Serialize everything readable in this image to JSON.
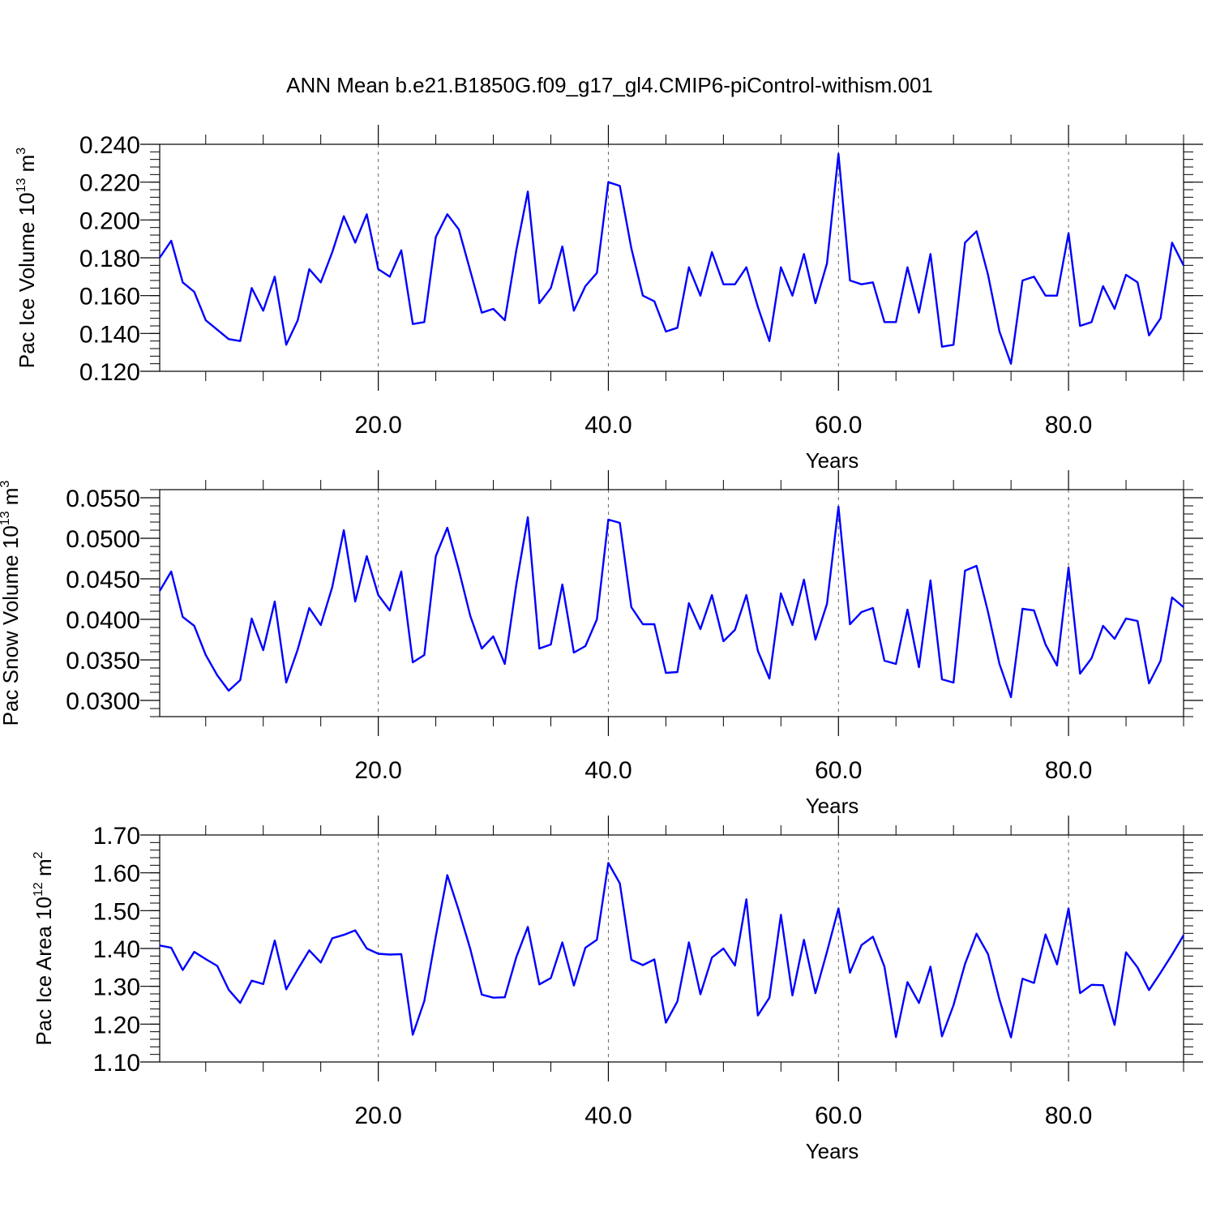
{
  "title": "ANN Mean b.e21.B1850G.f09_g17_gl4.CMIP6-piControl-withism.001",
  "colors": {
    "series": "#0000ff",
    "axes": "#000000",
    "grid": "#666666"
  },
  "chart_data": [
    {
      "type": "line",
      "ylabel": {
        "main": "Pac Ice Volume 10",
        "sup": "13",
        "unit": " m",
        "unit_sup": "3"
      },
      "xlabel": "Years",
      "xlim": [
        1,
        90
      ],
      "ylim": [
        0.12,
        0.24
      ],
      "yticks": [
        0.12,
        0.14,
        0.16,
        0.18,
        0.2,
        0.22,
        0.24
      ],
      "ytick_labels": [
        "0.120",
        "0.140",
        "0.160",
        "0.180",
        "0.200",
        "0.220",
        "0.240"
      ],
      "xticks": [
        20,
        40,
        60,
        80
      ],
      "xtick_labels": [
        "20.0",
        "40.0",
        "60.0",
        "80.0"
      ],
      "grid": "vertical dashed at major x ticks",
      "x": [
        1,
        2,
        3,
        4,
        5,
        6,
        7,
        8,
        9,
        10,
        11,
        12,
        13,
        14,
        15,
        16,
        17,
        18,
        19,
        20,
        21,
        22,
        23,
        24,
        25,
        26,
        27,
        28,
        29,
        30,
        31,
        32,
        33,
        34,
        35,
        36,
        37,
        38,
        39,
        40,
        41,
        42,
        43,
        44,
        45,
        46,
        47,
        48,
        49,
        50,
        51,
        52,
        53,
        54,
        55,
        56,
        57,
        58,
        59,
        60,
        61,
        62,
        63,
        64,
        65,
        66,
        67,
        68,
        69,
        70,
        71,
        72,
        73,
        74,
        75,
        76,
        77,
        78,
        79,
        80,
        81,
        82,
        83,
        84,
        85,
        86,
        87,
        88,
        89,
        90
      ],
      "values": [
        0.18,
        0.189,
        0.167,
        0.162,
        0.147,
        0.142,
        0.137,
        0.136,
        0.164,
        0.152,
        0.17,
        0.134,
        0.147,
        0.174,
        0.167,
        0.183,
        0.202,
        0.188,
        0.203,
        0.174,
        0.17,
        0.184,
        0.145,
        0.146,
        0.191,
        0.203,
        0.195,
        0.173,
        0.151,
        0.153,
        0.147,
        0.184,
        0.215,
        0.156,
        0.164,
        0.186,
        0.152,
        0.165,
        0.172,
        0.22,
        0.218,
        0.185,
        0.16,
        0.157,
        0.141,
        0.143,
        0.175,
        0.16,
        0.183,
        0.166,
        0.166,
        0.175,
        0.154,
        0.136,
        0.175,
        0.16,
        0.182,
        0.156,
        0.177,
        0.235,
        0.168,
        0.166,
        0.167,
        0.146,
        0.146,
        0.175,
        0.151,
        0.182,
        0.133,
        0.134,
        0.188,
        0.194,
        0.171,
        0.141,
        0.124,
        0.168,
        0.17,
        0.16,
        0.16,
        0.193,
        0.144,
        0.146,
        0.165,
        0.153,
        0.171,
        0.167,
        0.139,
        0.148,
        0.188,
        0.176
      ]
    },
    {
      "type": "line",
      "ylabel": {
        "main": "Pac Snow Volume 10",
        "sup": "13",
        "unit": " m",
        "unit_sup": "3"
      },
      "xlabel": "Years",
      "xlim": [
        1,
        90
      ],
      "ylim": [
        0.028,
        0.056
      ],
      "yticks": [
        0.03,
        0.035,
        0.04,
        0.045,
        0.05,
        0.055
      ],
      "ytick_labels": [
        "0.0300",
        "0.0350",
        "0.0400",
        "0.0450",
        "0.0500",
        "0.0550"
      ],
      "xticks": [
        20,
        40,
        60,
        80
      ],
      "xtick_labels": [
        "20.0",
        "40.0",
        "60.0",
        "80.0"
      ],
      "grid": "vertical dashed at major x ticks",
      "x": [
        1,
        2,
        3,
        4,
        5,
        6,
        7,
        8,
        9,
        10,
        11,
        12,
        13,
        14,
        15,
        16,
        17,
        18,
        19,
        20,
        21,
        22,
        23,
        24,
        25,
        26,
        27,
        28,
        29,
        30,
        31,
        32,
        33,
        34,
        35,
        36,
        37,
        38,
        39,
        40,
        41,
        42,
        43,
        44,
        45,
        46,
        47,
        48,
        49,
        50,
        51,
        52,
        53,
        54,
        55,
        56,
        57,
        58,
        59,
        60,
        61,
        62,
        63,
        64,
        65,
        66,
        67,
        68,
        69,
        70,
        71,
        72,
        73,
        74,
        75,
        76,
        77,
        78,
        79,
        80,
        81,
        82,
        83,
        84,
        85,
        86,
        87,
        88,
        89,
        90
      ],
      "values": [
        0.0435,
        0.0459,
        0.0403,
        0.0392,
        0.0356,
        0.0331,
        0.0312,
        0.0325,
        0.0401,
        0.0362,
        0.0422,
        0.0322,
        0.0363,
        0.0414,
        0.0393,
        0.044,
        0.051,
        0.0422,
        0.0478,
        0.043,
        0.0411,
        0.0459,
        0.0347,
        0.0356,
        0.0478,
        0.0513,
        0.0461,
        0.0404,
        0.0364,
        0.0379,
        0.0345,
        0.0443,
        0.0526,
        0.0364,
        0.0369,
        0.0443,
        0.0359,
        0.0367,
        0.04,
        0.0523,
        0.0519,
        0.0415,
        0.0394,
        0.0394,
        0.0334,
        0.0335,
        0.042,
        0.0388,
        0.043,
        0.0373,
        0.0387,
        0.043,
        0.0361,
        0.0327,
        0.0432,
        0.0393,
        0.0449,
        0.0375,
        0.0419,
        0.0539,
        0.0394,
        0.0409,
        0.0414,
        0.0349,
        0.0345,
        0.0412,
        0.0341,
        0.0448,
        0.0326,
        0.0322,
        0.046,
        0.0466,
        0.0409,
        0.0345,
        0.0304,
        0.0413,
        0.0411,
        0.0369,
        0.0343,
        0.0464,
        0.0333,
        0.0352,
        0.0392,
        0.0376,
        0.0401,
        0.0398,
        0.0321,
        0.0349,
        0.0427,
        0.0415
      ]
    },
    {
      "type": "line",
      "ylabel": {
        "main": "Pac Ice Area 10",
        "sup": "12",
        "unit": " m",
        "unit_sup": "2"
      },
      "xlabel": "Years",
      "xlim": [
        1,
        90
      ],
      "ylim": [
        1.1,
        1.7
      ],
      "yticks": [
        1.1,
        1.2,
        1.3,
        1.4,
        1.5,
        1.6,
        1.7
      ],
      "ytick_labels": [
        "1.10",
        "1.20",
        "1.30",
        "1.40",
        "1.50",
        "1.60",
        "1.70"
      ],
      "xticks": [
        20,
        40,
        60,
        80
      ],
      "xtick_labels": [
        "20.0",
        "40.0",
        "60.0",
        "80.0"
      ],
      "grid": "vertical dashed at major x ticks",
      "x": [
        1,
        2,
        3,
        4,
        5,
        6,
        7,
        8,
        9,
        10,
        11,
        12,
        13,
        14,
        15,
        16,
        17,
        18,
        19,
        20,
        21,
        22,
        23,
        24,
        25,
        26,
        27,
        28,
        29,
        30,
        31,
        32,
        33,
        34,
        35,
        36,
        37,
        38,
        39,
        40,
        41,
        42,
        43,
        44,
        45,
        46,
        47,
        48,
        49,
        50,
        51,
        52,
        53,
        54,
        55,
        56,
        57,
        58,
        59,
        60,
        61,
        62,
        63,
        64,
        65,
        66,
        67,
        68,
        69,
        70,
        71,
        72,
        73,
        74,
        75,
        76,
        77,
        78,
        79,
        80,
        81,
        82,
        83,
        84,
        85,
        86,
        87,
        88,
        89,
        90
      ],
      "values": [
        1.408,
        1.402,
        1.343,
        1.391,
        1.372,
        1.354,
        1.291,
        1.256,
        1.315,
        1.306,
        1.421,
        1.292,
        1.345,
        1.395,
        1.363,
        1.427,
        1.436,
        1.448,
        1.4,
        1.386,
        1.384,
        1.385,
        1.172,
        1.261,
        1.432,
        1.594,
        1.5,
        1.398,
        1.278,
        1.27,
        1.271,
        1.377,
        1.457,
        1.305,
        1.322,
        1.416,
        1.302,
        1.402,
        1.423,
        1.626,
        1.572,
        1.37,
        1.356,
        1.371,
        1.204,
        1.26,
        1.416,
        1.279,
        1.376,
        1.4,
        1.355,
        1.53,
        1.223,
        1.27,
        1.489,
        1.276,
        1.423,
        1.282,
        1.391,
        1.506,
        1.336,
        1.409,
        1.431,
        1.352,
        1.166,
        1.311,
        1.256,
        1.352,
        1.168,
        1.25,
        1.359,
        1.439,
        1.385,
        1.265,
        1.165,
        1.32,
        1.309,
        1.437,
        1.358,
        1.506,
        1.282,
        1.304,
        1.303,
        1.198,
        1.39,
        1.35,
        1.29,
        1.336,
        1.384,
        1.435
      ]
    }
  ]
}
